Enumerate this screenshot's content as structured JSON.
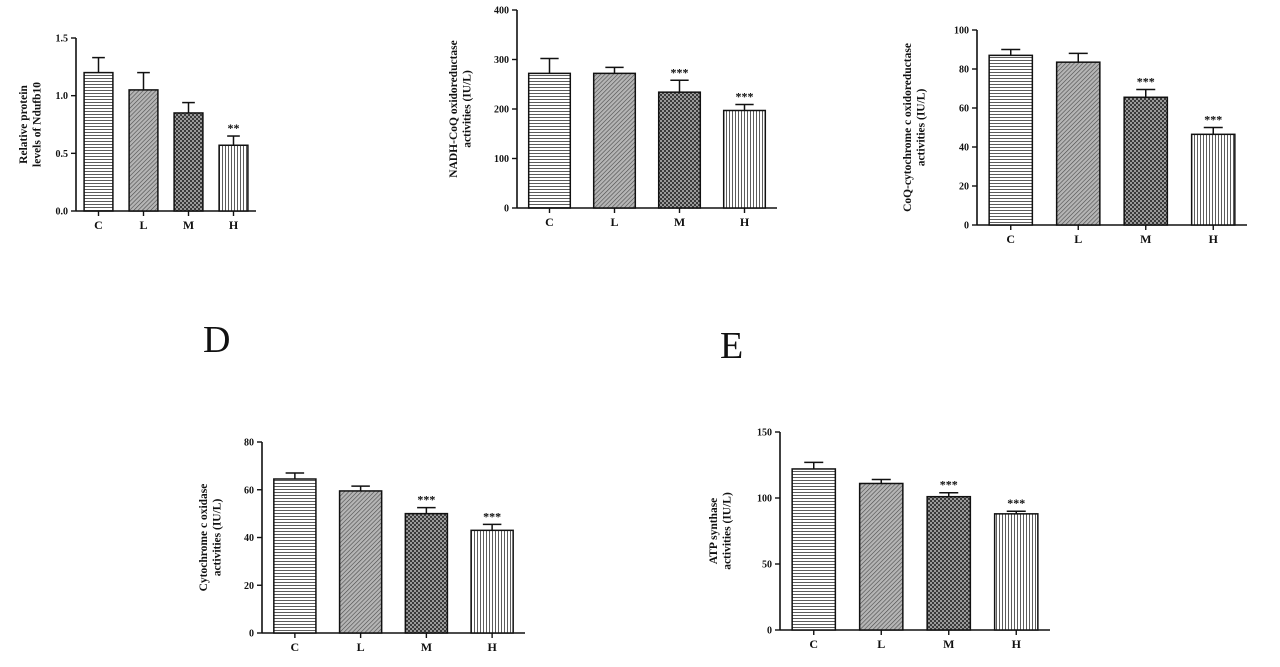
{
  "panel_letters": {
    "D": "D",
    "E": "E"
  },
  "chart_data": [
    {
      "type": "bar",
      "categories": [
        "C",
        "L",
        "M",
        "H"
      ],
      "values": [
        1.2,
        1.05,
        0.85,
        0.57
      ],
      "errors": [
        0.13,
        0.15,
        0.09,
        0.08
      ],
      "significance": [
        "",
        "",
        "",
        "**"
      ],
      "ylabel": "Relative protein levels of Ndufb10",
      "ylim": [
        0,
        1.5
      ],
      "yticks": [
        "0.0",
        "0.5",
        "1.0",
        "1.5"
      ]
    },
    {
      "type": "bar",
      "categories": [
        "C",
        "L",
        "M",
        "H"
      ],
      "values": [
        272,
        272,
        234,
        197
      ],
      "errors": [
        30,
        12,
        24,
        12
      ],
      "significance": [
        "",
        "",
        "***",
        "***"
      ],
      "ylabel": "NADH-CoQ oxidoreductase activities (IU/L)",
      "ylim": [
        0,
        400
      ],
      "yticks": [
        "0",
        "100",
        "200",
        "300",
        "400"
      ]
    },
    {
      "type": "bar",
      "categories": [
        "C",
        "L",
        "M",
        "H"
      ],
      "values": [
        87,
        83.5,
        65.5,
        46.5
      ],
      "errors": [
        3,
        4.5,
        4,
        3.5
      ],
      "significance": [
        "",
        "",
        "***",
        "***"
      ],
      "ylabel": "CoQ-cytochrome c oxidoreductase activities (IU/L)",
      "ylim": [
        0,
        100
      ],
      "yticks": [
        "0",
        "20",
        "40",
        "60",
        "80",
        "100"
      ]
    },
    {
      "type": "bar",
      "categories": [
        "C",
        "L",
        "M",
        "H"
      ],
      "values": [
        64.5,
        59.5,
        50,
        43
      ],
      "errors": [
        2.5,
        2,
        2.5,
        2.5
      ],
      "significance": [
        "",
        "",
        "***",
        "***"
      ],
      "ylabel": "Cytochrome c oxidase activities (IU/L)",
      "ylim": [
        0,
        80
      ],
      "yticks": [
        "0",
        "20",
        "40",
        "60",
        "80"
      ]
    },
    {
      "type": "bar",
      "categories": [
        "C",
        "L",
        "M",
        "H"
      ],
      "values": [
        122,
        111,
        101,
        88
      ],
      "errors": [
        5,
        3,
        3,
        2
      ],
      "significance": [
        "",
        "",
        "***",
        "***"
      ],
      "ylabel": "ATP synthase activities (IU/L)",
      "ylim": [
        0,
        150
      ],
      "yticks": [
        "0",
        "50",
        "100",
        "150"
      ]
    }
  ]
}
